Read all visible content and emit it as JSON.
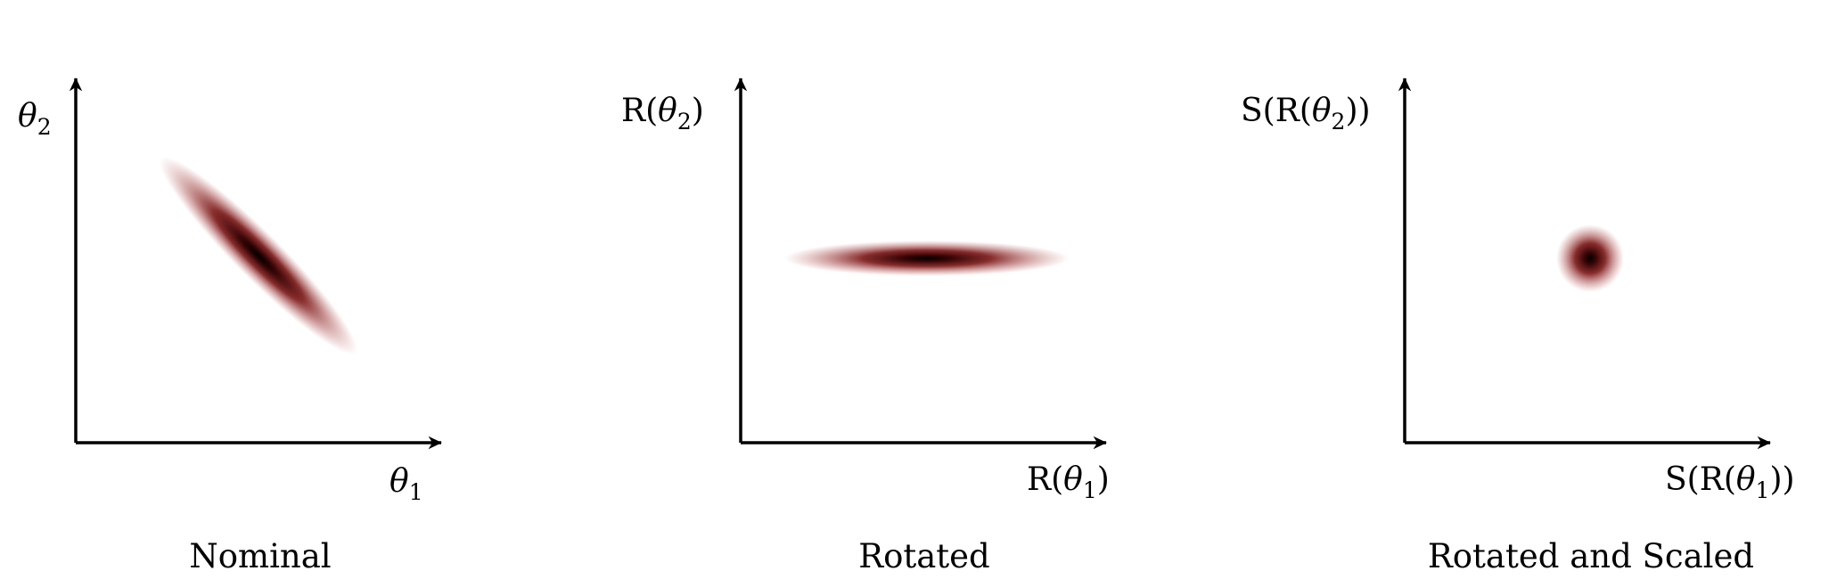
{
  "panels": [
    {
      "caption": "Nominal",
      "x_axis_label": {
        "func_open": "",
        "symbol": "θ",
        "sub": "1",
        "func_close": ""
      },
      "y_axis_label": {
        "func_open": "",
        "symbol": "θ",
        "sub": "2",
        "func_close": ""
      },
      "distribution": "elongated ellipse oriented along the negative diagonal"
    },
    {
      "caption": "Rotated",
      "x_axis_label": {
        "func_open": "R(",
        "symbol": "θ",
        "sub": "1",
        "func_close": ")"
      },
      "y_axis_label": {
        "func_open": "R(",
        "symbol": "θ",
        "sub": "2",
        "func_close": ")"
      },
      "distribution": "elongated ellipse aligned with the horizontal axis"
    },
    {
      "caption": "Rotated and Scaled",
      "x_axis_label": {
        "func_open": "S(R(",
        "symbol": "θ",
        "sub": "1",
        "func_close": "))"
      },
      "y_axis_label": {
        "func_open": "S(R(",
        "symbol": "θ",
        "sub": "2",
        "func_close": "))"
      },
      "distribution": "isotropic circular blob"
    }
  ],
  "colors": {
    "blob_center": "#000000",
    "blob_mid": "#7a1515",
    "blob_edge": "#ffffff",
    "axis": "#000000"
  }
}
